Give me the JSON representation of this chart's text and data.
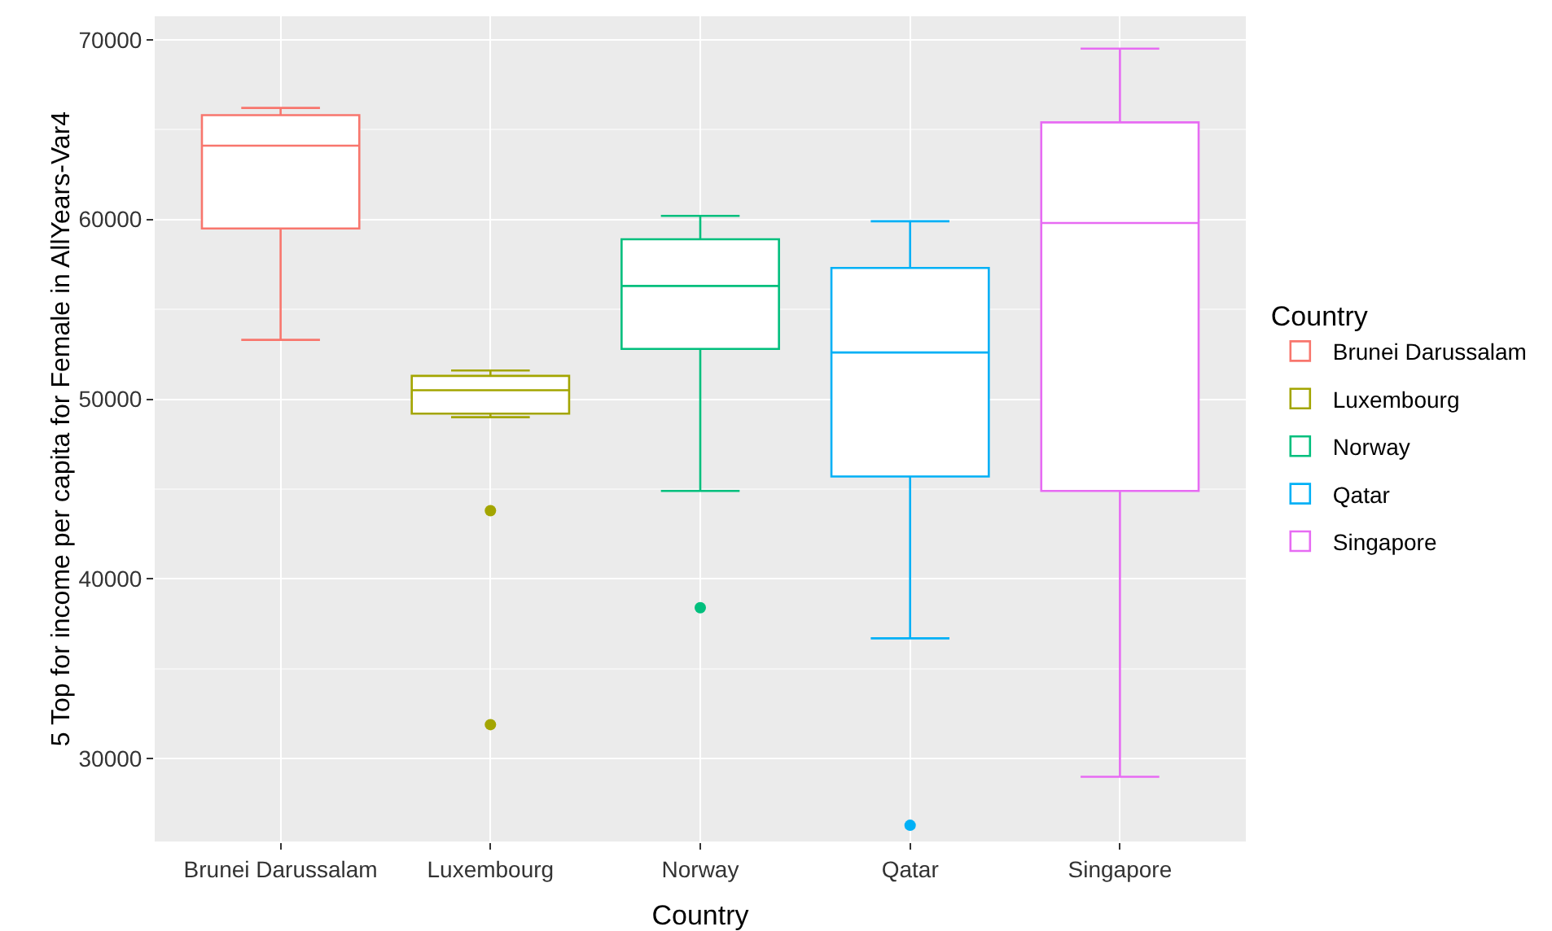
{
  "chart_data": {
    "type": "box",
    "xlabel": "Country",
    "ylabel": "5 Top for income per capita for Female in AllYears-Var4",
    "legend_title": "Country",
    "legend": "right",
    "grid": true,
    "categories": [
      "Brunei Darussalam",
      "Luxembourg",
      "Norway",
      "Qatar",
      "Singapore"
    ],
    "series": [
      {
        "name": "Brunei Darussalam",
        "color": "#f8766d",
        "boxes": [
          {
            "low": 53300,
            "q1": 59500,
            "median": 64100,
            "q3": 65800,
            "high": 66200
          },
          null,
          null,
          null,
          null
        ]
      },
      {
        "name": "Luxembourg",
        "color": "#a3a500",
        "boxes": [
          null,
          {
            "low": 49000,
            "q1": 49200,
            "median": 50500,
            "q3": 51300,
            "high": 51600,
            "outliers": [
              43800,
              31900
            ]
          },
          null,
          null,
          null
        ]
      },
      {
        "name": "Norway",
        "color": "#00bf7d",
        "boxes": [
          null,
          null,
          {
            "low": 44900,
            "q1": 52800,
            "median": 56300,
            "q3": 58900,
            "high": 60200,
            "outliers": [
              38400
            ]
          },
          null,
          null
        ]
      },
      {
        "name": "Qatar",
        "color": "#00b0f6",
        "boxes": [
          null,
          null,
          null,
          {
            "low": 36700,
            "q1": 45700,
            "median": 52600,
            "q3": 57300,
            "high": 59900,
            "outliers": [
              26300
            ]
          },
          null
        ]
      },
      {
        "name": "Singapore",
        "color": "#e76bf3",
        "boxes": [
          null,
          null,
          null,
          null,
          {
            "low": 29000,
            "q1": 44900,
            "median": 59800,
            "q3": 65400,
            "high": 69500
          }
        ]
      }
    ],
    "ylim": [
      25400,
      71300
    ],
    "yticks": [
      30000,
      40000,
      50000,
      60000,
      70000
    ]
  }
}
